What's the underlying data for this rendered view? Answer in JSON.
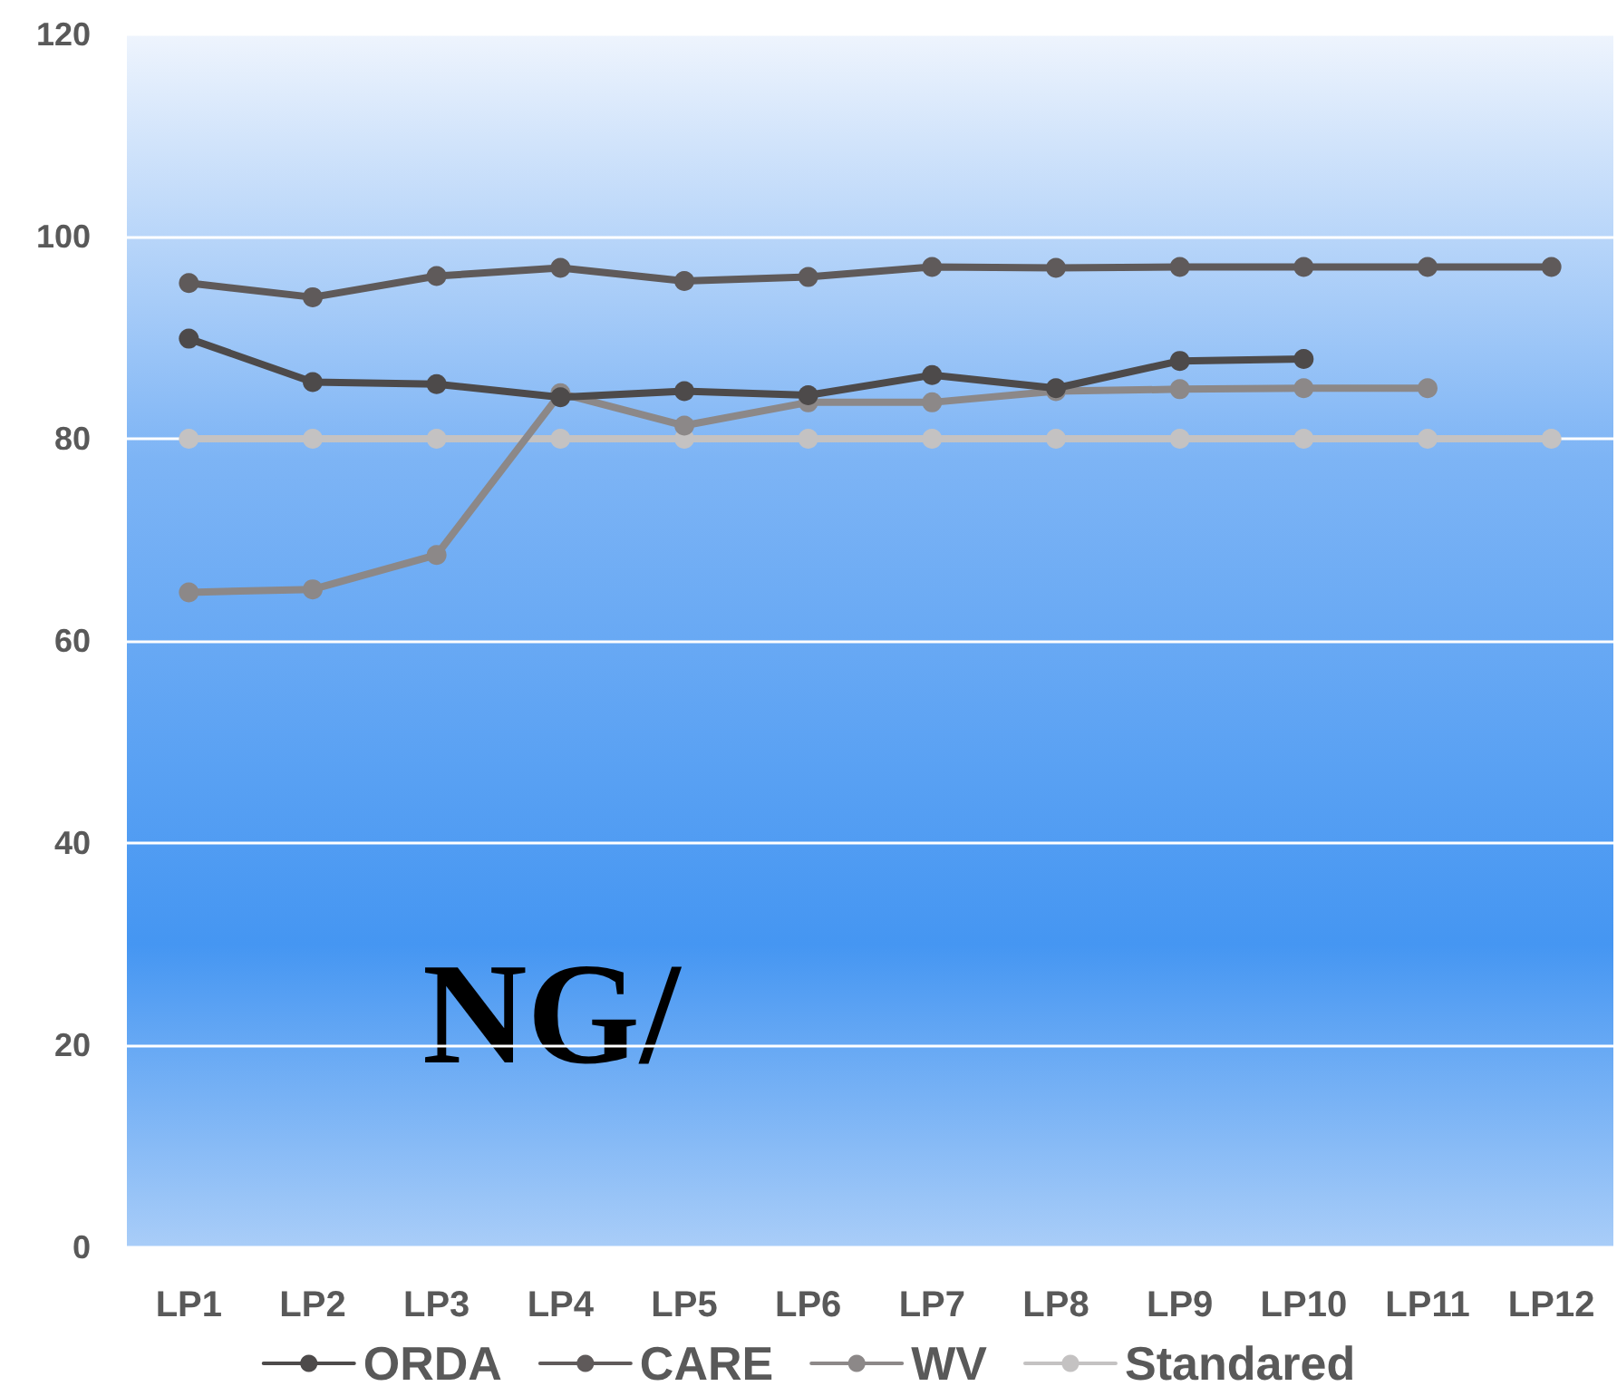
{
  "chart_data": {
    "type": "line",
    "categories": [
      "LP1",
      "LP2",
      "LP3",
      "LP4",
      "LP5",
      "LP6",
      "LP7",
      "LP8",
      "LP9",
      "LP10",
      "LP11",
      "LP12"
    ],
    "series": [
      {
        "name": "ORDA",
        "color": "#4d4a4a",
        "values": [
          89.9,
          85.6,
          85.4,
          84.1,
          84.7,
          84.3,
          86.3,
          85.0,
          87.7,
          87.9,
          null,
          null
        ]
      },
      {
        "name": "CARE",
        "color": "#5f5a5a",
        "values": [
          95.4,
          94.0,
          96.1,
          96.9,
          95.6,
          96.0,
          97.0,
          96.9,
          97.0,
          97.0,
          97.0,
          97.0
        ]
      },
      {
        "name": "WV",
        "color": "#8c8888",
        "values": [
          64.8,
          65.1,
          68.5,
          84.5,
          81.3,
          83.6,
          83.6,
          84.7,
          84.9,
          85.0,
          85.0,
          null
        ]
      },
      {
        "name": "Standared",
        "color": "#c4c2c2",
        "values": [
          80,
          80,
          80,
          80,
          80,
          80,
          80,
          80,
          80,
          80,
          80,
          80
        ]
      }
    ],
    "ylim": [
      0,
      120
    ],
    "yticks": [
      0,
      20,
      40,
      60,
      80,
      100,
      120
    ],
    "grid": "y",
    "legend": "bottom",
    "marker": "circle",
    "line_style": "solid",
    "annotations": [
      "NG/"
    ]
  }
}
